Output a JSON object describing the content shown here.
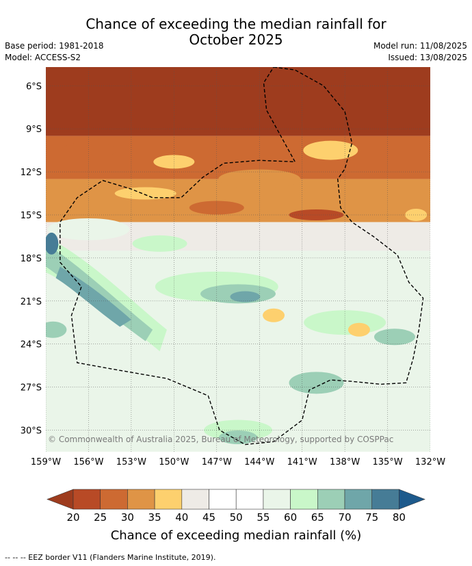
{
  "header": {
    "title_line1": "Chance of exceeding the median rainfall for",
    "title_line2": "October 2025",
    "base_period": "Base period: 1981-2018",
    "model": "Model: ACCESS-S2",
    "model_run": "Model run: 11/08/2025",
    "issued": "Issued: 13/08/2025"
  },
  "copyright": "© Commonwealth of Australia 2025, Bureau of Meteorology, supported by COSPPac",
  "footer": {
    "eez_note": "--  --  -- EEZ border V11 (Flanders Marine Institute, 2019)."
  },
  "colors": {
    "c15_20": "#9e3c1e",
    "c20_25": "#b84a26",
    "c25_30": "#cd6a32",
    "c30_35": "#df9446",
    "c35_40": "#fdd06e",
    "c40_45": "#eeebe6",
    "c45_55": "#ffffff",
    "c55_60": "#eaf5e9",
    "c60_65": "#c9f7c9",
    "c65_70": "#9ccfb6",
    "c70_75": "#6fa6a9",
    "c75_80": "#467c96",
    "c80_85": "#1d5a8c"
  },
  "chart_data": {
    "type": "heatmap",
    "title": "Chance of exceeding the median rainfall for October 2025",
    "x_ticks": [
      "159°W",
      "156°W",
      "153°W",
      "150°W",
      "147°W",
      "144°W",
      "141°W",
      "138°W",
      "135°W",
      "132°W"
    ],
    "y_ticks": [
      "6°S",
      "9°S",
      "12°S",
      "15°S",
      "18°S",
      "21°S",
      "24°S",
      "27°S",
      "30°S"
    ],
    "x_range": [
      -159,
      -132
    ],
    "y_range": [
      -31.5,
      -4.7
    ],
    "colorbar": {
      "label": "Chance of exceeding median rainfall (%)",
      "ticks": [
        "20",
        "25",
        "30",
        "35",
        "40",
        "45",
        "50",
        "55",
        "60",
        "65",
        "70",
        "75",
        "80"
      ],
      "extend": "both"
    },
    "bands": [
      {
        "lat_from": -4.7,
        "lat_to": -9.5,
        "chance_pct": 17
      },
      {
        "lat_from": -9.5,
        "lat_to": -12.5,
        "chance_pct": 28
      },
      {
        "lat_from": -12.5,
        "lat_to": -15.5,
        "chance_pct": 33
      },
      {
        "lat_from": -15.5,
        "lat_to": -17.5,
        "chance_pct": 43
      },
      {
        "lat_from": -17.5,
        "lat_to": -31.5,
        "chance_pct": 55
      }
    ],
    "features": [
      {
        "region": "western wet streak near 157°W-152°W, 17°S-23°S",
        "chance_pct": 72
      },
      {
        "region": "central wet patch near 148°W-144°W, 19°S-21°S",
        "chance_pct": 70
      },
      {
        "region": "southern wet patch near 147°W-144°W, 29°S-31°S",
        "chance_pct": 70
      },
      {
        "region": "dry spot near 137°W, 23°S",
        "chance_pct": 37
      },
      {
        "region": "dry spot near 143°W, 22°S",
        "chance_pct": 37
      }
    ]
  }
}
